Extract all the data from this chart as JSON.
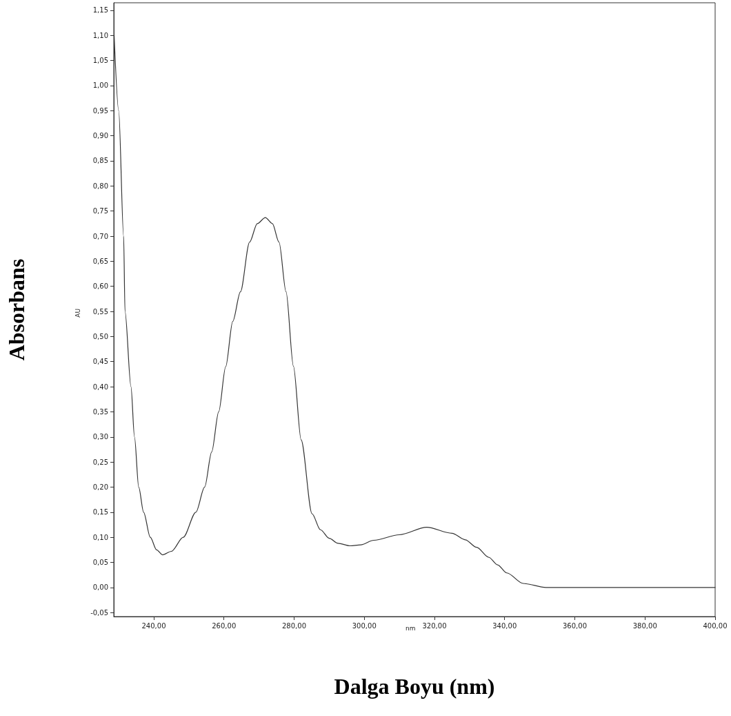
{
  "chart_data": {
    "type": "line",
    "xlabel": "Dalga Boyu (nm)",
    "ylabel": "Absorbans",
    "annotations": [
      "AU",
      "nm"
    ],
    "x": [
      228.7,
      230.0,
      231.4,
      231.8,
      233.5,
      234.5,
      235.7,
      237.1,
      239.0,
      240.8,
      242.5,
      245.0,
      248.4,
      252.0,
      254.5,
      256.5,
      258.5,
      260.5,
      262.5,
      264.7,
      267.3,
      269.5,
      271.8,
      273.8,
      275.7,
      277.7,
      279.8,
      282.0,
      285.1,
      287.5,
      290.0,
      292.5,
      295.9,
      299.0,
      302.7,
      310.0,
      317.8,
      325.0,
      328.8,
      332.0,
      335.5,
      338.0,
      340.6,
      345.3,
      351.8,
      360.0,
      380.0,
      400.0
    ],
    "values": [
      1.1,
      0.95,
      0.7,
      0.55,
      0.4,
      0.3,
      0.2,
      0.15,
      0.1,
      0.075,
      0.065,
      0.072,
      0.1,
      0.15,
      0.2,
      0.27,
      0.35,
      0.44,
      0.53,
      0.589,
      0.688,
      0.725,
      0.737,
      0.725,
      0.688,
      0.589,
      0.441,
      0.294,
      0.147,
      0.115,
      0.098,
      0.088,
      0.083,
      0.085,
      0.094,
      0.105,
      0.12,
      0.108,
      0.095,
      0.08,
      0.06,
      0.045,
      0.029,
      0.008,
      0.0,
      0.0,
      0.0,
      0.0
    ],
    "color": "#333333",
    "marker": "none",
    "line_style": "solid",
    "grid": false,
    "xlim": [
      228.6,
      400
    ],
    "ylim": [
      -0.058,
      1.165
    ],
    "xticks": [
      {
        "value": 240,
        "label": "240,00"
      },
      {
        "value": 260,
        "label": "260,00"
      },
      {
        "value": 280,
        "label": "280,00"
      },
      {
        "value": 300,
        "label": "300,00"
      },
      {
        "value": 320,
        "label": "320,00"
      },
      {
        "value": 340,
        "label": "340,00"
      },
      {
        "value": 360,
        "label": "360,00"
      },
      {
        "value": 380,
        "label": "380,00"
      },
      {
        "value": 400,
        "label": "400,00"
      }
    ],
    "yticks": [
      {
        "value": -0.05,
        "label": "-0,05"
      },
      {
        "value": 0,
        "label": "0,00"
      },
      {
        "value": 0.05,
        "label": "0,05"
      },
      {
        "value": 0.1,
        "label": "0,10"
      },
      {
        "value": 0.15,
        "label": "0,15"
      },
      {
        "value": 0.2,
        "label": "0,20"
      },
      {
        "value": 0.25,
        "label": "0,25"
      },
      {
        "value": 0.3,
        "label": "0,30"
      },
      {
        "value": 0.35,
        "label": "0,35"
      },
      {
        "value": 0.4,
        "label": "0,40"
      },
      {
        "value": 0.45,
        "label": "0,45"
      },
      {
        "value": 0.5,
        "label": "0,50"
      },
      {
        "value": 0.55,
        "label": "0,55"
      },
      {
        "value": 0.6,
        "label": "0,60"
      },
      {
        "value": 0.65,
        "label": "0,65"
      },
      {
        "value": 0.7,
        "label": "0,70"
      },
      {
        "value": 0.75,
        "label": "0,75"
      },
      {
        "value": 0.8,
        "label": "0,80"
      },
      {
        "value": 0.85,
        "label": "0,85"
      },
      {
        "value": 0.9,
        "label": "0,90"
      },
      {
        "value": 0.95,
        "label": "0,95"
      },
      {
        "value": 1.0,
        "label": "1,00"
      },
      {
        "value": 1.05,
        "label": "1,05"
      },
      {
        "value": 1.1,
        "label": "1,10"
      },
      {
        "value": 1.15,
        "label": "1,15"
      }
    ]
  }
}
